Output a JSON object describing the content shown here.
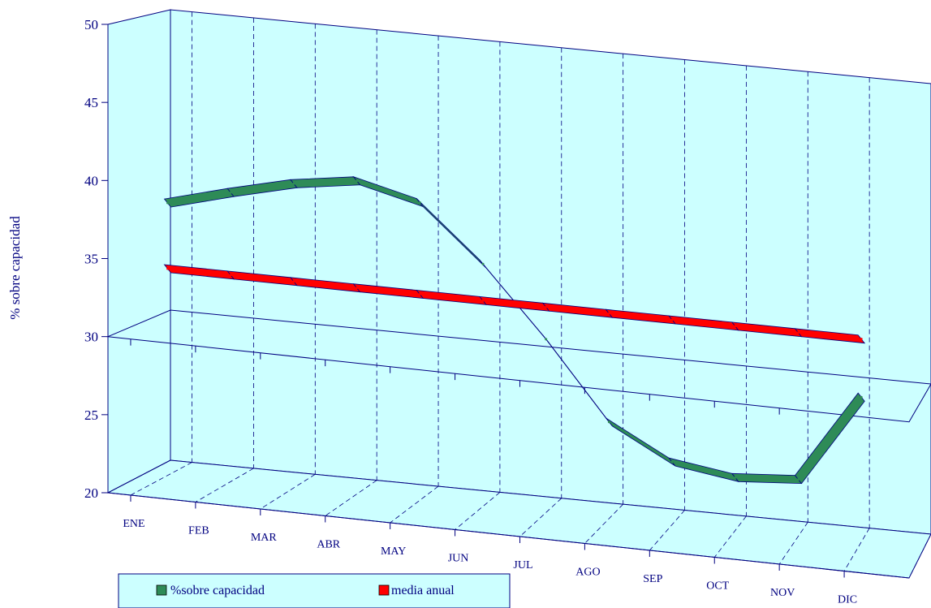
{
  "chart_data": {
    "type": "line",
    "title": "",
    "xlabel": "",
    "ylabel": "% sobre capacidad",
    "ylim": [
      20,
      50
    ],
    "yticks": [
      20,
      25,
      30,
      35,
      40,
      45,
      50
    ],
    "categories": [
      "ENE",
      "FEB",
      "MAR",
      "ABR",
      "MAY",
      "JUN",
      "JUL",
      "AGO",
      "SEP",
      "OCT",
      "NOV",
      "DIC"
    ],
    "series": [
      {
        "name": "%sobre capacidad",
        "color": "#2e8b57",
        "values": [
          38.2,
          39.3,
          40.3,
          40.9,
          39.9,
          36.3,
          31.8,
          26.8,
          24.6,
          24.0,
          24.3,
          30.1
        ]
      },
      {
        "name": "media anual",
        "color": "#ff0000",
        "values": [
          33.9,
          33.9,
          33.9,
          33.9,
          33.9,
          33.9,
          33.9,
          33.9,
          33.9,
          33.9,
          33.9,
          33.9
        ]
      }
    ],
    "grid": true,
    "legend_position": "bottom-left",
    "colors": {
      "wall": "#ccffff",
      "axis": "#000080",
      "text": "#000080"
    }
  }
}
